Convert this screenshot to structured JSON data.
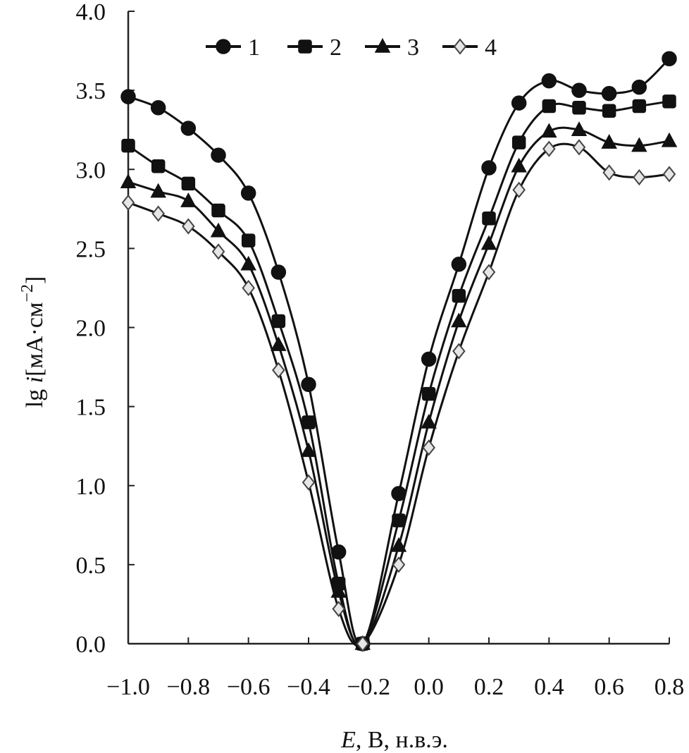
{
  "chart_data": {
    "type": "line",
    "title": "",
    "xlabel": {
      "italic": "E",
      "rest": ", В, н.в.э."
    },
    "ylabel": {
      "pre": "lg ",
      "italic": "i",
      "unit": "[мА·см",
      "sup": "−2",
      "close": "]"
    },
    "xlim": [
      -1.0,
      0.8
    ],
    "ylim": [
      0.0,
      4.0
    ],
    "xticks": [
      -1.0,
      -0.8,
      -0.6,
      -0.4,
      -0.2,
      0.0,
      0.2,
      0.4,
      0.6,
      0.8
    ],
    "xtick_labels": [
      "−1.0",
      "−0.8",
      "−0.6",
      "−0.4",
      "−0.2",
      "0.0",
      "0.2",
      "0.4",
      "0.6",
      "0.8"
    ],
    "yticks": [
      0.0,
      0.5,
      1.0,
      1.5,
      2.0,
      2.5,
      3.0,
      3.5,
      4.0
    ],
    "ytick_labels": [
      "0.0",
      "0.5",
      "1.0",
      "1.5",
      "2.0",
      "2.5",
      "3.0",
      "3.5",
      "4.0"
    ],
    "grid": false,
    "legend_position": "top",
    "series": [
      {
        "name": "1",
        "marker": "circle",
        "x": [
          -1.0,
          -0.9,
          -0.8,
          -0.7,
          -0.6,
          -0.5,
          -0.4,
          -0.3,
          -0.22,
          -0.1,
          0.0,
          0.1,
          0.2,
          0.3,
          0.4,
          0.5,
          0.6,
          0.7,
          0.8
        ],
        "y": [
          3.46,
          3.39,
          3.26,
          3.09,
          2.85,
          2.35,
          1.64,
          0.58,
          0.0,
          0.95,
          1.8,
          2.4,
          3.01,
          3.42,
          3.56,
          3.5,
          3.48,
          3.52,
          3.7
        ]
      },
      {
        "name": "2",
        "marker": "square",
        "x": [
          -1.0,
          -0.9,
          -0.8,
          -0.7,
          -0.6,
          -0.5,
          -0.4,
          -0.3,
          -0.22,
          -0.1,
          0.0,
          0.1,
          0.2,
          0.3,
          0.4,
          0.5,
          0.6,
          0.7,
          0.8
        ],
        "y": [
          3.15,
          3.02,
          2.91,
          2.74,
          2.55,
          2.04,
          1.4,
          0.38,
          0.0,
          0.78,
          1.58,
          2.2,
          2.69,
          3.17,
          3.4,
          3.39,
          3.37,
          3.4,
          3.43
        ]
      },
      {
        "name": "3",
        "marker": "triangle",
        "x": [
          -1.0,
          -0.9,
          -0.8,
          -0.7,
          -0.6,
          -0.5,
          -0.4,
          -0.3,
          -0.22,
          -0.1,
          0.0,
          0.1,
          0.2,
          0.3,
          0.4,
          0.5,
          0.6,
          0.7,
          0.8
        ],
        "y": [
          2.92,
          2.86,
          2.8,
          2.61,
          2.4,
          1.89,
          1.22,
          0.33,
          0.0,
          0.62,
          1.4,
          2.04,
          2.53,
          3.02,
          3.24,
          3.25,
          3.17,
          3.15,
          3.18
        ]
      },
      {
        "name": "4",
        "marker": "diamond",
        "x": [
          -1.0,
          -0.9,
          -0.8,
          -0.7,
          -0.6,
          -0.5,
          -0.4,
          -0.3,
          -0.22,
          -0.1,
          0.0,
          0.1,
          0.2,
          0.3,
          0.4,
          0.5,
          0.6,
          0.7,
          0.8
        ],
        "y": [
          2.79,
          2.72,
          2.64,
          2.48,
          2.25,
          1.73,
          1.02,
          0.22,
          0.0,
          0.5,
          1.24,
          1.85,
          2.35,
          2.87,
          3.13,
          3.14,
          2.98,
          2.95,
          2.97
        ]
      }
    ]
  }
}
